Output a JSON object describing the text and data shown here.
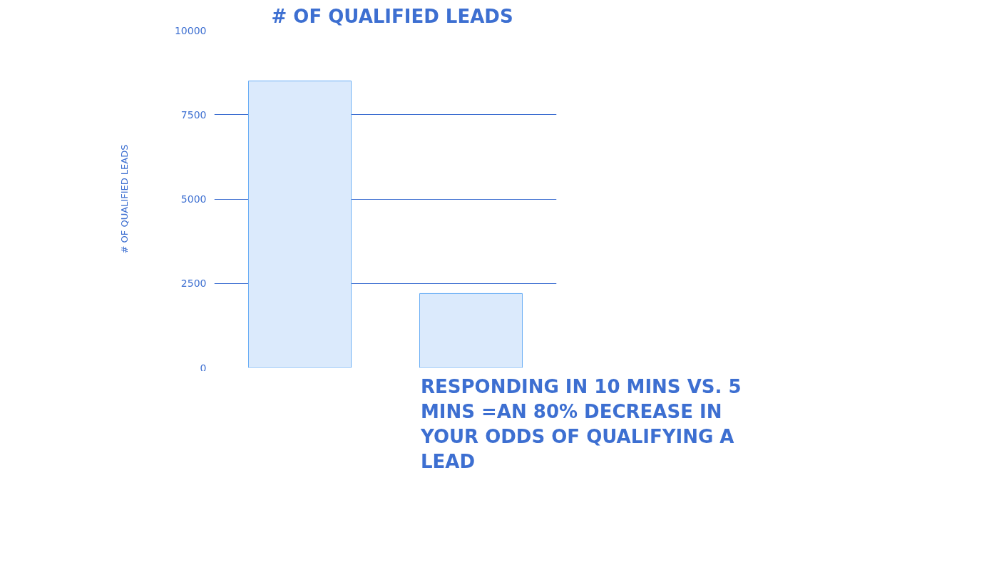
{
  "chart_data": {
    "type": "bar",
    "title": "# OF QUALIFIED LEADS",
    "ylabel": "# OF QUALIFIED LEADS",
    "categories": [
      null,
      null
    ],
    "values": [
      8500,
      2200
    ],
    "color": "#dbeafc",
    "ylim": [
      0,
      10000
    ],
    "yticks": [
      0,
      2500,
      5000,
      7500,
      10000
    ],
    "grid": "y",
    "tick_labels": "y",
    "annotations": [
      "RESPONDING IN 10 MINS VS. 5 MINS =AN 80% DECREASE IN YOUR ODDS OF QUALIFYING A LEAD"
    ]
  }
}
